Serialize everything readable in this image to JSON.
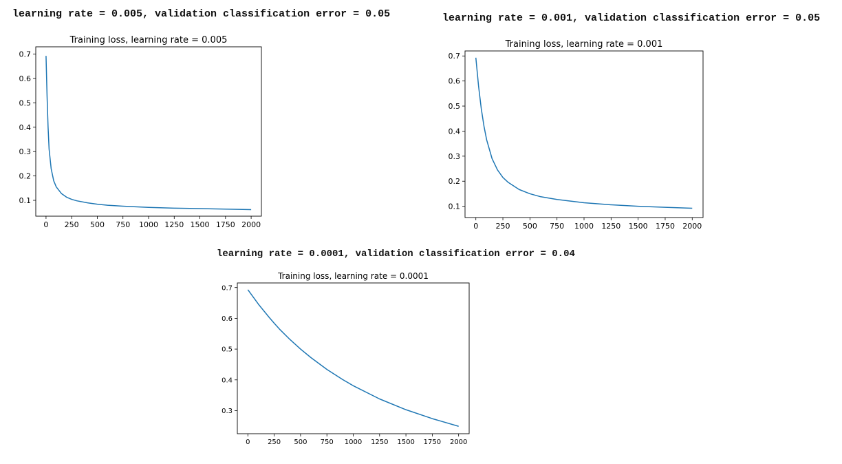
{
  "headers": [
    "learning rate = 0.005, validation classification error = 0.05",
    "learning rate = 0.001, validation classification error = 0.05",
    "learning rate = 0.0001, validation classification error = 0.04"
  ],
  "colors": {
    "line": "#1f77b4",
    "axes": "#000000",
    "background": "#ffffff"
  },
  "chart_data": [
    {
      "type": "line",
      "title": "Training loss, learning rate = 0.005",
      "xlabel": "",
      "ylabel": "",
      "xlim": [
        -100,
        2100
      ],
      "ylim": [
        0.035,
        0.73
      ],
      "xticks": [
        0,
        250,
        500,
        750,
        1000,
        1250,
        1500,
        1750,
        2000
      ],
      "yticks": [
        0.1,
        0.2,
        0.3,
        0.4,
        0.5,
        0.6,
        0.7
      ],
      "grid": false,
      "legend": "none",
      "series": [
        {
          "x": [
            0,
            10,
            20,
            30,
            50,
            75,
            100,
            150,
            200,
            250,
            300,
            400,
            500,
            600,
            750,
            1000,
            1250,
            1500,
            1750,
            2000
          ],
          "y": [
            0.693,
            0.53,
            0.4,
            0.31,
            0.23,
            0.18,
            0.155,
            0.128,
            0.113,
            0.104,
            0.098,
            0.09,
            0.084,
            0.08,
            0.076,
            0.071,
            0.068,
            0.066,
            0.064,
            0.062
          ]
        }
      ]
    },
    {
      "type": "line",
      "title": "Training loss, learning rate = 0.001",
      "xlabel": "",
      "ylabel": "",
      "xlim": [
        -100,
        2100
      ],
      "ylim": [
        0.055,
        0.72
      ],
      "xticks": [
        0,
        250,
        500,
        750,
        1000,
        1250,
        1500,
        1750,
        2000
      ],
      "yticks": [
        0.1,
        0.2,
        0.3,
        0.4,
        0.5,
        0.6,
        0.7
      ],
      "grid": false,
      "legend": "none",
      "series": [
        {
          "x": [
            0,
            25,
            50,
            75,
            100,
            150,
            200,
            250,
            300,
            400,
            500,
            600,
            750,
            1000,
            1250,
            1500,
            1750,
            2000
          ],
          "y": [
            0.693,
            0.58,
            0.49,
            0.42,
            0.365,
            0.29,
            0.245,
            0.215,
            0.195,
            0.167,
            0.15,
            0.138,
            0.127,
            0.114,
            0.106,
            0.1,
            0.096,
            0.092
          ]
        }
      ]
    },
    {
      "type": "line",
      "title": "Training loss, learning rate = 0.0001",
      "xlabel": "",
      "ylabel": "",
      "xlim": [
        -100,
        2100
      ],
      "ylim": [
        0.225,
        0.715
      ],
      "xticks": [
        0,
        250,
        500,
        750,
        1000,
        1250,
        1500,
        1750,
        2000
      ],
      "yticks": [
        0.3,
        0.4,
        0.5,
        0.6,
        0.7
      ],
      "grid": false,
      "legend": "none",
      "series": [
        {
          "x": [
            0,
            100,
            200,
            250,
            300,
            400,
            500,
            600,
            750,
            900,
            1000,
            1250,
            1500,
            1750,
            2000
          ],
          "y": [
            0.693,
            0.646,
            0.604,
            0.584,
            0.565,
            0.531,
            0.5,
            0.472,
            0.434,
            0.401,
            0.381,
            0.338,
            0.303,
            0.274,
            0.249
          ]
        }
      ]
    }
  ]
}
